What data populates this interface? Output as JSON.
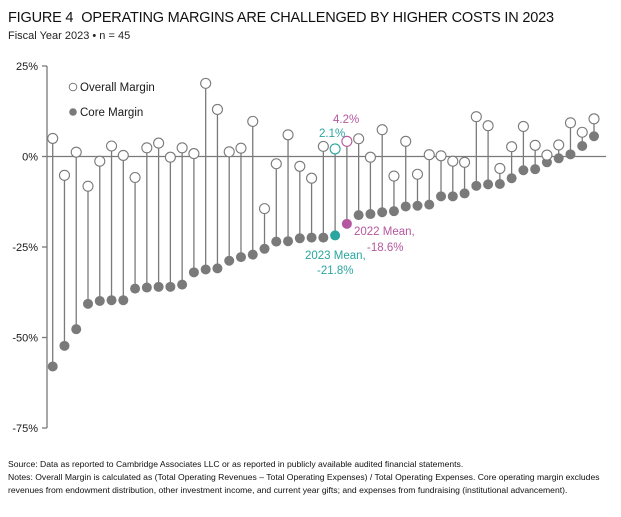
{
  "header": {
    "figure_label": "FIGURE 4",
    "title": "OPERATING MARGINS ARE CHALLENGED BY HIGHER COSTS IN 2023",
    "subtitle": "Fiscal Year 2023 • n = 45"
  },
  "colors": {
    "gray": "#7a7a7a",
    "axis": "#7a7a7a",
    "mean_2023": "#2aa5a0",
    "mean_2022": "#b5579e"
  },
  "chart_data": {
    "type": "scatter",
    "subtype": "lollipop / dumbbell",
    "title": "OPERATING MARGINS ARE CHALLENGED BY HIGHER COSTS IN 2023",
    "xlabel": "",
    "ylabel": "",
    "ylim": [
      -75,
      25
    ],
    "yticks": [
      25,
      0,
      -25,
      -50,
      -75
    ],
    "ytick_labels": [
      "25%",
      "0%",
      "-25%",
      "-50%",
      "-75%"
    ],
    "grid": false,
    "legend_position": "top-left",
    "legend": [
      {
        "name": "Overall Margin",
        "marker": "open-circle"
      },
      {
        "name": "Core Margin",
        "marker": "filled-circle"
      }
    ],
    "series": [
      {
        "name": "Overall Margin",
        "values": [
          5.0,
          -5.2,
          1.2,
          -8.2,
          -1.3,
          2.9,
          0.3,
          -5.8,
          2.4,
          3.7,
          -0.2,
          2.4,
          0.8,
          20.2,
          13.0,
          1.3,
          2.3,
          9.7,
          -14.4,
          -2.0,
          6.0,
          -2.7,
          -6.0,
          2.8,
          2.1,
          4.2,
          4.9,
          -0.2,
          7.4,
          -5.4,
          4.2,
          -4.9,
          0.5,
          0.2,
          -1.3,
          -1.6,
          11.0,
          8.5,
          -3.3,
          2.7,
          8.3,
          3.1,
          0.4,
          3.2,
          9.3,
          6.7,
          10.4
        ]
      },
      {
        "name": "Core Margin",
        "values": [
          -58.0,
          -52.3,
          -47.7,
          -40.7,
          -39.9,
          -39.7,
          -39.7,
          -36.5,
          -36.2,
          -36.0,
          -36.0,
          -35.4,
          -32.0,
          -31.2,
          -30.9,
          -28.8,
          -27.8,
          -27.1,
          -25.5,
          -23.5,
          -23.4,
          -22.6,
          -22.4,
          -22.4,
          -21.8,
          -18.6,
          -16.2,
          -15.9,
          -15.4,
          -15.1,
          -13.8,
          -13.6,
          -13.3,
          -11.0,
          -11.0,
          -10.2,
          -8.1,
          -7.7,
          -7.6,
          -6.0,
          -3.8,
          -3.5,
          -1.6,
          -0.5,
          0.6,
          2.9,
          5.6
        ]
      }
    ],
    "highlight": {
      "mean_2023_index": 24,
      "mean_2022_index": 25
    },
    "annotations": [
      {
        "text": "2.1%",
        "target": "2023 Mean overall",
        "color": "teal"
      },
      {
        "text": "4.2%",
        "target": "2022 Mean overall",
        "color": "magenta"
      },
      {
        "text_line1": "2023 Mean,",
        "text_line2": "-21.8%",
        "target": "2023 Mean core",
        "color": "teal"
      },
      {
        "text_line1": "2022 Mean,",
        "text_line2": "-18.6%",
        "target": "2022 Mean core",
        "color": "magenta"
      }
    ]
  },
  "footer": {
    "source": "Source: Data as reported to Cambridge Associates LLC or as reported in publicly available audited financial statements.",
    "notes": "Notes: Overall Margin is calculated as (Total Operating Revenues – Total Operating Expenses) / Total Operating Expenses. Core operating margin excludes revenues from endowment distribution, other investment income, and current year gifts; and expenses from fundraising (institutional advancement)."
  }
}
